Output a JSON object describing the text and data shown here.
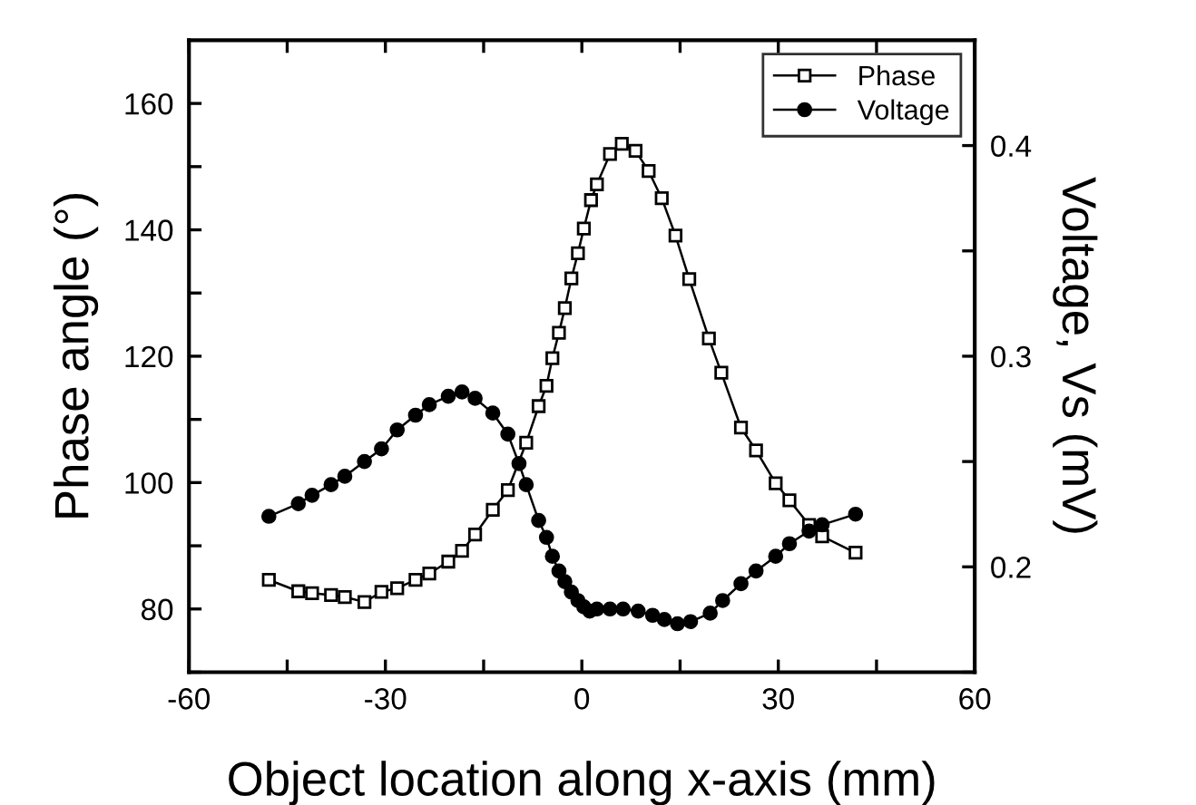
{
  "chart_data": {
    "type": "line",
    "xlabel": "Object location along x-axis (mm)",
    "ylabel": "Phase angle (°)",
    "y2label": "Voltage, Vs (mV)",
    "xlim": [
      -60,
      60
    ],
    "xticks": [
      -60,
      {
        "value": -45,
        "label": null
      },
      -30,
      {
        "value": -15,
        "label": null
      },
      0,
      {
        "value": 15,
        "label": null
      },
      30,
      {
        "value": 45,
        "label": null
      },
      60
    ],
    "ylim": [
      70,
      170
    ],
    "yticks": [
      {
        "value": 70,
        "label": null
      },
      80,
      {
        "value": 90,
        "label": null
      },
      100,
      {
        "value": 110,
        "label": null
      },
      120,
      {
        "value": 130,
        "label": null
      },
      140,
      {
        "value": 150,
        "label": null
      },
      160
    ],
    "y2lim": [
      0.15,
      0.45
    ],
    "y2ticks": [
      {
        "value": 0.15,
        "label": null
      },
      0.2,
      {
        "value": 0.25,
        "label": null
      },
      0.3,
      {
        "value": 0.35,
        "label": null
      },
      0.4
    ],
    "legend": "top right",
    "line_style": "solid",
    "grid": false,
    "series": [
      {
        "name": "Phase",
        "color": "#000000",
        "marker": "square",
        "x": [
          -47.8,
          -43.3,
          -41.2,
          -38.3,
          -36.2,
          -33.2,
          -30.6,
          -28.2,
          -25.4,
          -23.3,
          -20.4,
          -18.3,
          -16.3,
          -13.6,
          -11.3,
          -8.5,
          -6.6,
          -5.4,
          -4.5,
          -3.5,
          -2.6,
          -1.6,
          -0.6,
          0.3,
          1.4,
          2.3,
          4.3,
          6.1,
          8.2,
          10.2,
          12.2,
          14.3,
          16.4,
          19.4,
          21.3,
          24.3,
          26.6,
          29.6,
          31.7,
          34.7,
          36.7,
          41.8
        ],
        "values": [
          84.6,
          82.8,
          82.5,
          82.2,
          81.9,
          81.1,
          82.7,
          83.3,
          84.6,
          85.6,
          87.5,
          89.2,
          91.8,
          95.7,
          98.8,
          106.3,
          112.1,
          115.3,
          119.7,
          123.7,
          127.6,
          132.3,
          136.3,
          140.2,
          144.7,
          147.2,
          152.0,
          153.6,
          152.5,
          149.3,
          145.0,
          139.1,
          132.2,
          122.8,
          117.4,
          108.7,
          105.1,
          99.9,
          97.2,
          93.3,
          91.5,
          88.9
        ]
      },
      {
        "name": "Voltage",
        "color": "#000000",
        "marker": "circle",
        "axis": "y2",
        "x": [
          -47.8,
          -43.3,
          -41.2,
          -38.3,
          -36.2,
          -33.2,
          -30.6,
          -28.2,
          -25.4,
          -23.3,
          -20.4,
          -18.3,
          -16.3,
          -13.6,
          -11.3,
          -9.6,
          -8.5,
          -6.6,
          -5.4,
          -4.5,
          -3.5,
          -2.6,
          -1.6,
          -0.6,
          0.3,
          1.2,
          2.3,
          4.3,
          6.3,
          8.6,
          10.8,
          12.6,
          14.6,
          16.6,
          19.6,
          21.5,
          24.3,
          26.6,
          29.6,
          31.7,
          34.7,
          36.7,
          41.8
        ],
        "values": [
          0.224,
          0.23,
          0.234,
          0.239,
          0.243,
          0.25,
          0.256,
          0.265,
          0.272,
          0.277,
          0.281,
          0.283,
          0.28,
          0.273,
          0.263,
          0.249,
          0.239,
          0.222,
          0.214,
          0.205,
          0.198,
          0.193,
          0.188,
          0.184,
          0.181,
          0.179,
          0.18,
          0.18,
          0.18,
          0.179,
          0.177,
          0.175,
          0.173,
          0.174,
          0.178,
          0.184,
          0.192,
          0.198,
          0.205,
          0.211,
          0.217,
          0.22,
          0.225
        ]
      }
    ]
  }
}
